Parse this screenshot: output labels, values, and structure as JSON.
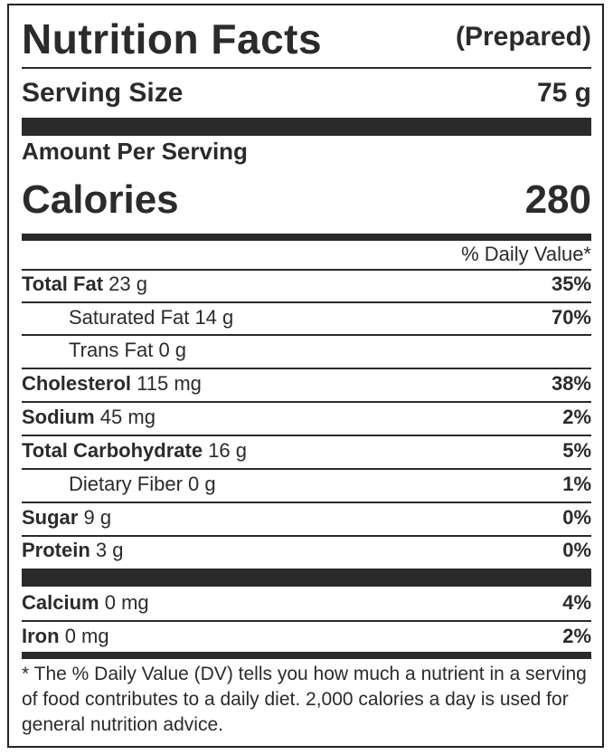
{
  "header": {
    "title": "Nutrition Facts",
    "prepared": "(Prepared)"
  },
  "serving": {
    "label": "Serving Size",
    "value": "75 g"
  },
  "amount_per_serving": "Amount Per Serving",
  "calories": {
    "label": "Calories",
    "value": "280"
  },
  "daily_value_header": "% Daily Value*",
  "nutrients": [
    {
      "name": "Total Fat",
      "amount": "23 g",
      "dv": "35%"
    },
    {
      "name": "Saturated Fat",
      "amount": "14 g",
      "dv": "70%"
    },
    {
      "name": "Trans Fat",
      "amount": "0 g",
      "dv": ""
    },
    {
      "name": "Cholesterol",
      "amount": "115 mg",
      "dv": "38%"
    },
    {
      "name": "Sodium",
      "amount": "45 mg",
      "dv": "2%"
    },
    {
      "name": "Total Carbohydrate",
      "amount": "16 g",
      "dv": "5%"
    },
    {
      "name": "Dietary Fiber",
      "amount": "0 g",
      "dv": "1%"
    },
    {
      "name": "Sugar",
      "amount": "9 g",
      "dv": "0%"
    },
    {
      "name": "Protein",
      "amount": "3 g",
      "dv": "0%"
    }
  ],
  "minerals": [
    {
      "name": "Calcium",
      "amount": "0 mg",
      "dv": "4%"
    },
    {
      "name": "Iron",
      "amount": "0 mg",
      "dv": "2%"
    }
  ],
  "footnote": "* The % Daily Value (DV) tells you how much a nutrient in a serving of food contributes to a daily diet. 2,000 calories a day is used for general nutrition advice."
}
